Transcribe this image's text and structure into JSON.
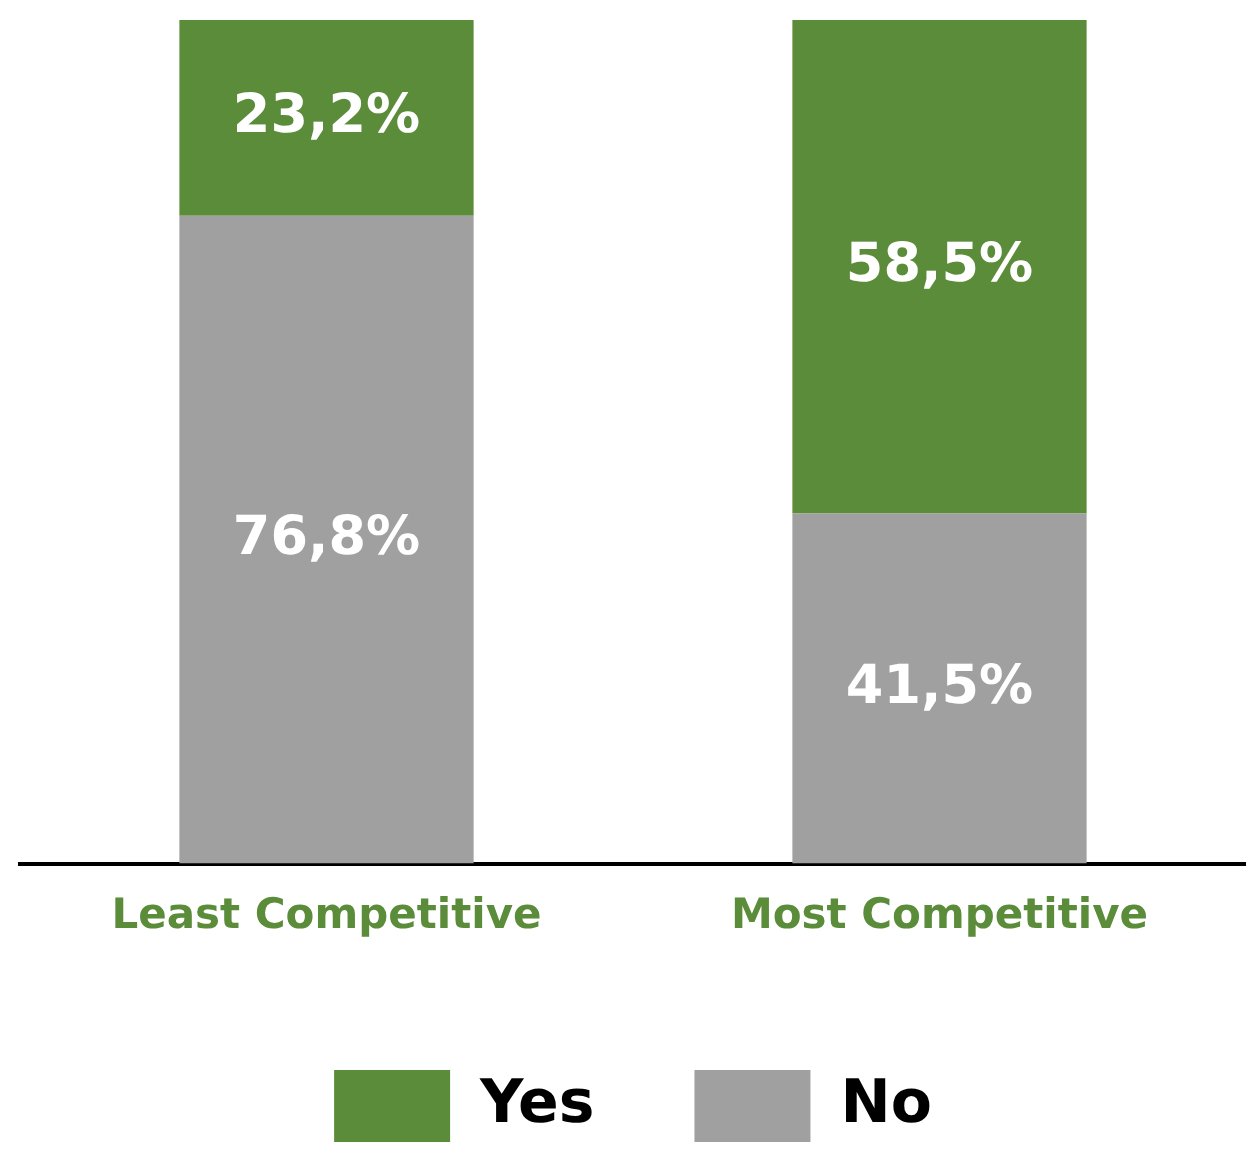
{
  "chart_data": {
    "type": "bar",
    "stacked": true,
    "categories": [
      "Least Competitive",
      "Most Competitive"
    ],
    "series": [
      {
        "name": "No",
        "color": "#a0a0a0",
        "values": [
          76.8,
          41.5
        ],
        "value_labels": [
          "76,8%",
          "41,5%"
        ]
      },
      {
        "name": "Yes",
        "color": "#5b8c3a",
        "values": [
          23.2,
          58.5
        ],
        "value_labels": [
          "23,2%",
          "58,5%"
        ]
      }
    ],
    "ylim": [
      0,
      100
    ],
    "tick_labels": "x",
    "grid": false,
    "legend": "bottom"
  }
}
